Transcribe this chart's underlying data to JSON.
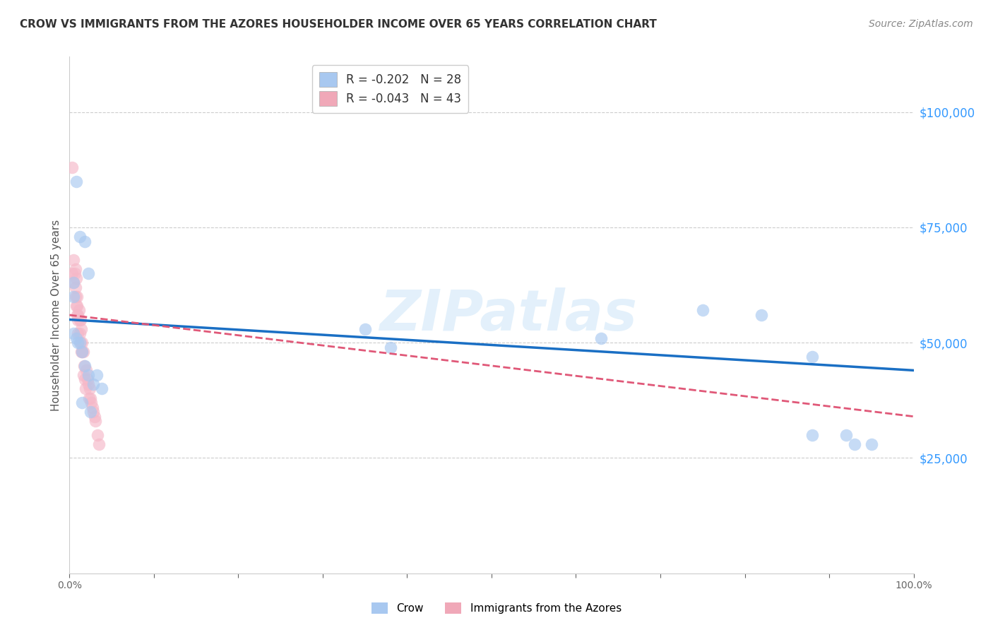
{
  "title": "CROW VS IMMIGRANTS FROM THE AZORES HOUSEHOLDER INCOME OVER 65 YEARS CORRELATION CHART",
  "source": "Source: ZipAtlas.com",
  "ylabel": "Householder Income Over 65 years",
  "right_ytick_values": [
    100000,
    75000,
    50000,
    25000
  ],
  "xlim": [
    0,
    1.0
  ],
  "ylim": [
    0,
    112000
  ],
  "legend": [
    {
      "label": "R = -0.202   N = 28",
      "color": "#a8c8f0"
    },
    {
      "label": "R = -0.043   N = 43",
      "color": "#f0a8b8"
    }
  ],
  "crow_scatter": {
    "x": [
      0.008,
      0.012,
      0.018,
      0.022,
      0.005,
      0.005,
      0.005,
      0.008,
      0.01,
      0.012,
      0.015,
      0.018,
      0.022,
      0.028,
      0.015,
      0.025,
      0.032,
      0.038,
      0.35,
      0.38,
      0.63,
      0.75,
      0.82,
      0.88,
      0.88,
      0.92,
      0.93,
      0.95
    ],
    "y": [
      85000,
      73000,
      72000,
      65000,
      63000,
      60000,
      52000,
      51000,
      50000,
      50000,
      48000,
      45000,
      43000,
      41000,
      37000,
      35000,
      43000,
      40000,
      53000,
      49000,
      51000,
      57000,
      56000,
      47000,
      30000,
      30000,
      28000,
      28000
    ]
  },
  "azores_scatter": {
    "x": [
      0.003,
      0.003,
      0.005,
      0.005,
      0.006,
      0.007,
      0.007,
      0.007,
      0.008,
      0.008,
      0.009,
      0.009,
      0.009,
      0.01,
      0.01,
      0.01,
      0.011,
      0.012,
      0.012,
      0.013,
      0.013,
      0.014,
      0.014,
      0.015,
      0.015,
      0.016,
      0.016,
      0.017,
      0.018,
      0.019,
      0.02,
      0.021,
      0.022,
      0.023,
      0.024,
      0.025,
      0.026,
      0.027,
      0.028,
      0.03,
      0.031,
      0.033,
      0.035
    ],
    "y": [
      88000,
      65000,
      68000,
      63000,
      65000,
      66000,
      62000,
      60000,
      64000,
      58000,
      60000,
      58000,
      56000,
      56000,
      55000,
      52000,
      57000,
      55000,
      52000,
      55000,
      50000,
      53000,
      48000,
      50000,
      48000,
      48000,
      43000,
      45000,
      42000,
      40000,
      44000,
      42000,
      41000,
      38000,
      40000,
      38000,
      37000,
      36000,
      35000,
      34000,
      33000,
      30000,
      28000
    ]
  },
  "crow_line_x": [
    0.0,
    1.0
  ],
  "crow_line_y": [
    55000,
    44000
  ],
  "azores_line_x": [
    0.0,
    1.0
  ],
  "azores_line_y": [
    56000,
    34000
  ],
  "scatter_color_crow": "#a8c8f0",
  "scatter_color_azores": "#f5b8c8",
  "line_color_crow": "#1a6fc4",
  "line_color_azores": "#e05878",
  "watermark": "ZIPatlas",
  "background_color": "#ffffff",
  "grid_color": "#cccccc"
}
